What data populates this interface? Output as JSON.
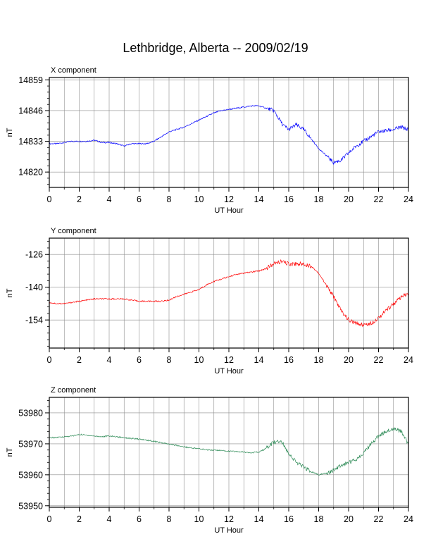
{
  "title": "Lethbridge, Alberta -- 2009/02/19",
  "chart_data": [
    {
      "type": "line",
      "subtitle": "X component",
      "xlabel": "UT Hour",
      "ylabel": "nT",
      "xlim": [
        0,
        24
      ],
      "ylim": [
        14813.5,
        14860
      ],
      "xticks": [
        0,
        2,
        4,
        6,
        8,
        10,
        12,
        14,
        16,
        18,
        20,
        22,
        24
      ],
      "yticks": [
        14820,
        14833,
        14846,
        14859
      ],
      "grid": true,
      "color": "#0000ff",
      "series": [
        {
          "x": [
            0,
            0.5,
            1,
            1.5,
            2,
            2.5,
            3,
            3.5,
            4,
            4.5,
            5,
            5.5,
            6,
            6.5,
            7,
            7.5,
            8,
            8.5,
            9,
            9.5,
            10,
            10.5,
            11,
            11.5,
            12,
            12.5,
            13,
            13.5,
            14,
            14.5,
            15,
            15.3,
            15.6,
            16,
            16.5,
            17,
            17.5,
            18,
            18.5,
            19,
            19.5,
            20,
            20.5,
            21,
            21.5,
            22,
            22.5,
            23,
            23.5,
            24
          ],
          "y": [
            14832,
            14832,
            14832.5,
            14833,
            14833,
            14833,
            14833.5,
            14832.5,
            14832.5,
            14832,
            14831,
            14832,
            14832,
            14832,
            14833,
            14835,
            14837,
            14838,
            14839,
            14840.5,
            14842,
            14843.5,
            14845,
            14846,
            14846.5,
            14847,
            14847.5,
            14848,
            14848,
            14847,
            14846,
            14843,
            14840,
            14838,
            14840,
            14838,
            14834,
            14830,
            14827,
            14824,
            14825,
            14828,
            14831,
            14833,
            14835,
            14837,
            14837.5,
            14838,
            14839,
            14838
          ]
        }
      ]
    },
    {
      "type": "line",
      "subtitle": "Y component",
      "xlabel": "UT Hour",
      "ylabel": "nT",
      "xlim": [
        0,
        24
      ],
      "ylim": [
        -166,
        -119
      ],
      "xticks": [
        0,
        2,
        4,
        6,
        8,
        10,
        12,
        14,
        16,
        18,
        20,
        22,
        24
      ],
      "yticks": [
        -126,
        -140,
        -154
      ],
      "grid": true,
      "color": "#ff0000",
      "series": [
        {
          "x": [
            0,
            0.5,
            1,
            1.5,
            2,
            2.5,
            3,
            3.5,
            4,
            4.5,
            5,
            5.5,
            6,
            6.5,
            7,
            7.5,
            8,
            8.5,
            9,
            9.5,
            10,
            10.5,
            11,
            11.5,
            12,
            12.5,
            13,
            13.5,
            14,
            14.5,
            15,
            15.5,
            16,
            16.5,
            17,
            17.5,
            18,
            18.5,
            19,
            19.5,
            20,
            20.5,
            21,
            21.5,
            22,
            22.5,
            23,
            23.5,
            24
          ],
          "y": [
            -146.5,
            -147,
            -147,
            -146.5,
            -146,
            -145.5,
            -145,
            -145,
            -145,
            -145,
            -145,
            -145.5,
            -146,
            -146,
            -146,
            -146,
            -145.5,
            -144,
            -143,
            -142,
            -141,
            -139,
            -137.5,
            -136.5,
            -135.5,
            -134.5,
            -134,
            -133.5,
            -133,
            -132,
            -130,
            -129,
            -130,
            -130,
            -130,
            -131,
            -134,
            -139,
            -144,
            -150,
            -154,
            -155.5,
            -156,
            -155.5,
            -153,
            -150,
            -147,
            -144.5,
            -142.5
          ]
        }
      ]
    },
    {
      "type": "line",
      "subtitle": "Z component",
      "xlabel": "UT Hour",
      "ylabel": "nT",
      "xlim": [
        0,
        24
      ],
      "ylim": [
        53949.5,
        53985
      ],
      "xticks": [
        0,
        2,
        4,
        6,
        8,
        10,
        12,
        14,
        16,
        18,
        20,
        22,
        24
      ],
      "yticks": [
        53950,
        53960,
        53970,
        53980
      ],
      "grid": true,
      "color": "#2e8b57",
      "series": [
        {
          "x": [
            0,
            0.5,
            1,
            1.5,
            2,
            2.5,
            3,
            3.5,
            4,
            4.5,
            5,
            5.5,
            6,
            6.5,
            7,
            7.5,
            8,
            8.5,
            9,
            9.5,
            10,
            10.5,
            11,
            11.5,
            12,
            12.5,
            13,
            13.5,
            14,
            14.5,
            15,
            15.5,
            16,
            16.5,
            17,
            17.5,
            18,
            18.5,
            19,
            19.5,
            20,
            20.5,
            21,
            21.5,
            22,
            22.5,
            23,
            23.5,
            24
          ],
          "y": [
            53972,
            53972,
            53972.3,
            53972.5,
            53973,
            53972.8,
            53972.5,
            53972.3,
            53972.5,
            53972.3,
            53972,
            53971.7,
            53971.5,
            53971.2,
            53970.8,
            53970.3,
            53969.9,
            53969.5,
            53969,
            53968.7,
            53968.4,
            53968.1,
            53968,
            53967.8,
            53967.6,
            53967.5,
            53967.3,
            53967.2,
            53967.3,
            53968.5,
            53970.5,
            53970.8,
            53967,
            53964,
            53962.5,
            53961,
            53960,
            53960.5,
            53961.5,
            53963,
            53964,
            53965,
            53967,
            53970,
            53972.5,
            53974,
            53975,
            53974,
            53970
          ]
        }
      ]
    }
  ]
}
